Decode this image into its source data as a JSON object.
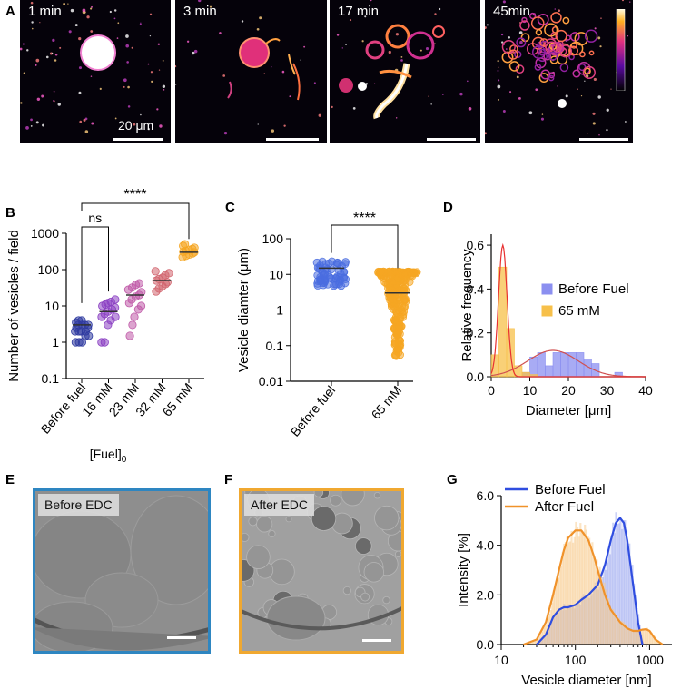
{
  "panels": {
    "A": {
      "label": "A",
      "images": [
        {
          "time": "1 min",
          "scalebar": "20 μm"
        },
        {
          "time": "3 min"
        },
        {
          "time": "17 min"
        },
        {
          "time": "45min"
        }
      ]
    },
    "E": {
      "label": "E",
      "title": "Before EDC",
      "border_color": "#2e86c1"
    },
    "F": {
      "label": "F",
      "title": "After EDC",
      "border_color": "#f0a830"
    }
  },
  "chart_data": [
    {
      "panel": "B",
      "type": "scatter",
      "ylabel": "Number of vesicles / field",
      "xlabel": "[Fuel]0",
      "categories": [
        "Before fuel",
        "16 mM",
        "23 mM",
        "32 mM",
        "65 mM"
      ],
      "yscale": "log",
      "ylim": [
        0.1,
        1000
      ],
      "yticks": [
        "0.1",
        "1",
        "10",
        "100",
        "1000"
      ],
      "colors": [
        "#2f3ba0",
        "#8a3fc2",
        "#c05aa8",
        "#d1646e",
        "#f5a623"
      ],
      "medians": [
        3,
        7,
        20,
        50,
        300
      ],
      "values": [
        [
          1,
          1,
          1,
          1.5,
          1.5,
          2,
          2,
          2,
          2,
          2.5,
          2.5,
          3,
          3,
          3,
          3,
          3.5,
          4,
          4
        ],
        [
          1,
          1,
          3,
          4,
          5,
          5,
          6,
          7,
          8,
          9,
          10,
          11,
          12,
          13,
          15
        ],
        [
          1.5,
          3,
          5,
          8,
          10,
          12,
          15,
          18,
          20,
          24,
          28,
          32,
          38,
          42
        ],
        [
          25,
          30,
          35,
          40,
          45,
          50,
          55,
          60,
          70,
          80,
          90
        ],
        [
          220,
          240,
          260,
          280,
          300,
          310,
          330,
          350,
          370,
          400,
          450,
          500
        ]
      ],
      "significance": [
        {
          "from": "Before fuel",
          "to": "16 mM",
          "label": "ns"
        },
        {
          "from": "Before fuel",
          "to": "65 mM",
          "label": "****"
        }
      ]
    },
    {
      "panel": "C",
      "type": "scatter",
      "ylabel": "Vesicle diamter (μm)",
      "categories": [
        "Before fuel",
        "65 mM"
      ],
      "yscale": "log",
      "ylim": [
        0.01,
        100
      ],
      "yticks": [
        "0.01",
        "0.1",
        "1",
        "10",
        "100"
      ],
      "colors": [
        "#4a6de0",
        "#f5a623"
      ],
      "ranges": [
        [
          3,
          30
        ],
        [
          0.05,
          12
        ]
      ],
      "medians": [
        15,
        3
      ],
      "significance": [
        {
          "from": "Before fuel",
          "to": "65 mM",
          "label": "****"
        }
      ]
    },
    {
      "panel": "D",
      "type": "bar",
      "xlabel": "Diameter [μm]",
      "ylabel": "Relative frequency",
      "xlim": [
        0,
        40
      ],
      "ylim": [
        0,
        0.65
      ],
      "xticks": [
        "0",
        "10",
        "20",
        "30",
        "40"
      ],
      "yticks": [
        "0.0",
        "0.2",
        "0.4",
        "0.6"
      ],
      "bin_width": 2,
      "series": [
        {
          "name": "Before Fuel",
          "color": "#8b8ff0",
          "bins": [
            [
              8,
              0.02
            ],
            [
              10,
              0.09
            ],
            [
              12,
              0.11
            ],
            [
              14,
              0.05
            ],
            [
              16,
              0.11
            ],
            [
              18,
              0.11
            ],
            [
              20,
              0.11
            ],
            [
              22,
              0.11
            ],
            [
              24,
              0.08
            ],
            [
              26,
              0.06
            ],
            [
              32,
              0.02
            ]
          ],
          "fit": {
            "mean": 16,
            "sd": 6.5,
            "peak": 0.12
          }
        },
        {
          "name": "65 mM",
          "color": "#f7c04a",
          "bins": [
            [
              0,
              0.1
            ],
            [
              2,
              0.5
            ],
            [
              4,
              0.22
            ],
            [
              6,
              0.05
            ],
            [
              8,
              0.02
            ],
            [
              10,
              0.01
            ]
          ],
          "fit": {
            "mean": 3,
            "sd": 1.1,
            "peak": 0.6
          }
        }
      ]
    },
    {
      "panel": "G",
      "type": "line",
      "xlabel": "Vesicle diameter [nm]",
      "ylabel": "Intensity [%]",
      "xscale": "log",
      "xlim": [
        10,
        2000
      ],
      "ylim": [
        0,
        6
      ],
      "xticks": [
        "10",
        "100",
        "1000"
      ],
      "yticks": [
        "0.0",
        "2.0",
        "4.0",
        "6.0"
      ],
      "series": [
        {
          "name": "Before Fuel",
          "color": "#2f4de0",
          "x": [
            30,
            40,
            50,
            60,
            70,
            80,
            100,
            120,
            150,
            200,
            250,
            300,
            350,
            400,
            450,
            500,
            600,
            700,
            800
          ],
          "y": [
            0.0,
            0.4,
            1.1,
            1.4,
            1.5,
            1.5,
            1.6,
            1.8,
            2.0,
            2.4,
            3.2,
            4.2,
            4.9,
            5.1,
            4.9,
            4.2,
            2.4,
            0.9,
            0.0
          ]
        },
        {
          "name": "After Fuel",
          "color": "#f0922a",
          "x": [
            20,
            30,
            40,
            50,
            60,
            70,
            80,
            100,
            120,
            150,
            180,
            200,
            250,
            300,
            400,
            500,
            600,
            700,
            800,
            900,
            1000,
            1200,
            1500
          ],
          "y": [
            0.0,
            0.2,
            0.9,
            2.0,
            3.0,
            3.8,
            4.3,
            4.6,
            4.6,
            4.2,
            3.5,
            3.0,
            2.0,
            1.4,
            0.9,
            0.65,
            0.55,
            0.55,
            0.6,
            0.62,
            0.55,
            0.2,
            0.0
          ]
        }
      ]
    }
  ]
}
